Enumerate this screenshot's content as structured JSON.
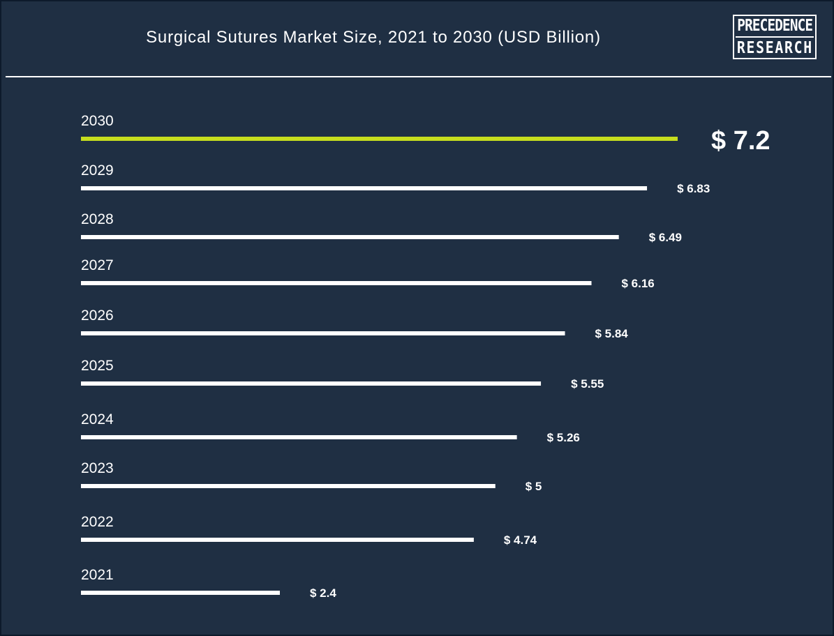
{
  "header": {
    "title": "Surgical Sutures Market Size, 2021 to 2030 (USD Billion)",
    "logo_line1": "PRECEDENCE",
    "logo_line2": "RESEARCH"
  },
  "colors": {
    "background": "#1f2f43",
    "bar": "#ffffff",
    "highlight_bar": "#c6dd1e",
    "text": "#ffffff"
  },
  "chart_data": {
    "type": "bar",
    "orientation": "horizontal",
    "title": "Surgical Sutures Market Size, 2021 to 2030 (USD Billion)",
    "categories": [
      "2030",
      "2029",
      "2028",
      "2027",
      "2026",
      "2025",
      "2024",
      "2023",
      "2022",
      "2021"
    ],
    "values": [
      7.2,
      6.83,
      6.49,
      6.16,
      5.84,
      5.55,
      5.26,
      5,
      4.74,
      2.4
    ],
    "value_labels": [
      "$ 7.2",
      "$ 6.83",
      "$ 6.49",
      "$ 6.16",
      "$ 5.84",
      "$ 5.55",
      "$ 5.26",
      "$ 5",
      "$ 4.74",
      "$ 2.4"
    ],
    "highlight_category": "2030",
    "grid": false,
    "legend": "none"
  }
}
